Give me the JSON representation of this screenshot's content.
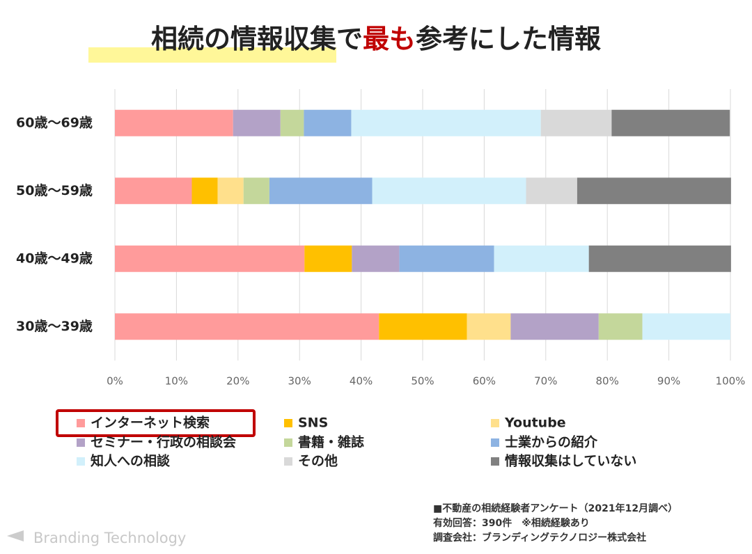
{
  "chart_data": {
    "type": "bar",
    "orientation": "horizontal",
    "stacked": true,
    "title_parts": [
      "相続の情報収集で",
      "最も",
      "参考にした情報"
    ],
    "categories": [
      "60歳～69歳",
      "50歳～59歳",
      "40歳～49歳",
      "30歳～39歳"
    ],
    "series": [
      {
        "name": "インターネット検索",
        "color": "#ff9b9b",
        "values": [
          19.2,
          12.5,
          30.8,
          42.9
        ]
      },
      {
        "name": "SNS",
        "color": "#ffc000",
        "values": [
          0,
          4.2,
          7.7,
          14.3
        ]
      },
      {
        "name": "Youtube",
        "color": "#ffe08c",
        "values": [
          0,
          4.2,
          0,
          7.1
        ]
      },
      {
        "name": "セミナー・行政の相談会",
        "color": "#b3a2c7",
        "values": [
          7.7,
          0,
          7.7,
          14.3
        ]
      },
      {
        "name": "書籍・雑誌",
        "color": "#c4d79b",
        "values": [
          3.8,
          4.2,
          0,
          7.1
        ]
      },
      {
        "name": "士業からの紹介",
        "color": "#8db3e2",
        "values": [
          7.7,
          16.7,
          15.4,
          0
        ]
      },
      {
        "name": "知人への相談",
        "color": "#d2f0fb",
        "values": [
          30.8,
          25.0,
          15.4,
          14.3
        ]
      },
      {
        "name": "その他",
        "color": "#d9d9d9",
        "values": [
          11.5,
          8.3,
          0,
          0
        ]
      },
      {
        "name": "情報収集はしていない",
        "color": "#808080",
        "values": [
          19.2,
          25.0,
          23.1,
          0
        ]
      }
    ],
    "xlim": [
      0,
      100
    ],
    "xticks": [
      {
        "value": 0,
        "label": "0%"
      },
      {
        "value": 10,
        "label": "10%"
      },
      {
        "value": 20,
        "label": "20%"
      },
      {
        "value": 30,
        "label": "30%"
      },
      {
        "value": 40,
        "label": "40%"
      },
      {
        "value": 50,
        "label": "50%"
      },
      {
        "value": 60,
        "label": "60%"
      },
      {
        "value": 70,
        "label": "70%"
      },
      {
        "value": 80,
        "label": "80%"
      },
      {
        "value": 90,
        "label": "90%"
      },
      {
        "value": 100,
        "label": "100%"
      }
    ],
    "grid": true
  },
  "notes": [
    "■不動産の相続経験者アンケート（2021年12月調べ）",
    "有効回答：390件　※相続経験あり",
    "調査会社：ブランディングテクノロジー株式会社"
  ],
  "logo": "Branding Technology"
}
